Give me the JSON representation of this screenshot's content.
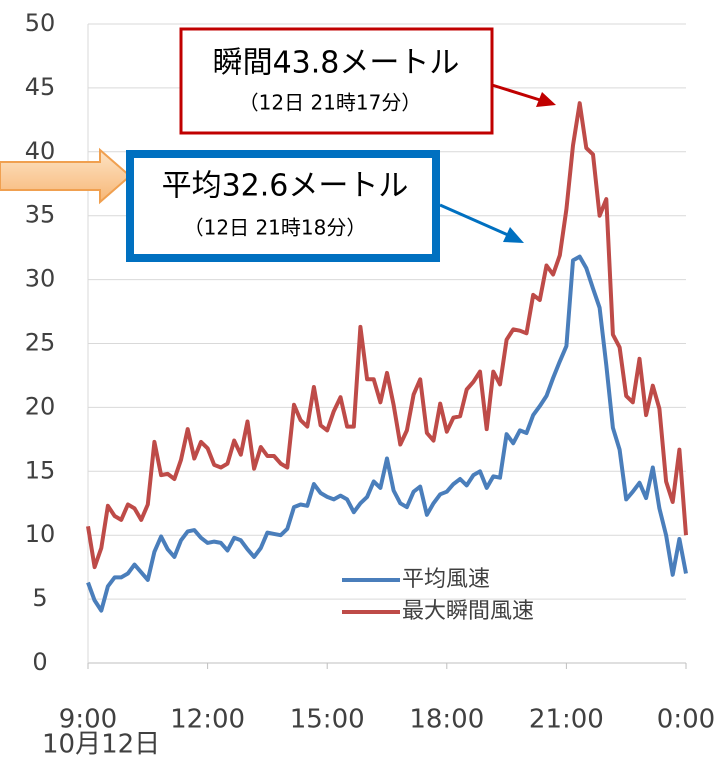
{
  "chart_data": {
    "type": "line",
    "categories": [
      "9:00",
      null,
      null,
      null,
      null,
      null,
      null,
      null,
      null,
      null,
      null,
      null,
      null,
      null,
      null,
      null,
      null,
      null,
      "12:00",
      null,
      null,
      null,
      null,
      null,
      null,
      null,
      null,
      null,
      null,
      null,
      null,
      null,
      null,
      null,
      null,
      null,
      "15:00",
      null,
      null,
      null,
      null,
      null,
      null,
      null,
      null,
      null,
      null,
      null,
      null,
      null,
      null,
      null,
      null,
      null,
      "18:00",
      null,
      null,
      null,
      null,
      null,
      null,
      null,
      null,
      null,
      null,
      null,
      null,
      null,
      null,
      null,
      null,
      null,
      "21:00",
      null,
      null,
      null,
      null,
      null,
      null,
      null,
      null,
      null,
      null,
      null,
      null,
      null,
      null,
      null,
      null,
      null,
      "0:00"
    ],
    "x_label": "10月12日",
    "ylim": [
      0,
      50
    ],
    "yticks": [
      0,
      5,
      10,
      15,
      20,
      25,
      30,
      35,
      40,
      45,
      50
    ],
    "grid": true,
    "series": [
      {
        "name": "平均風速",
        "color": "#4a7ebb",
        "values": [
          6.3,
          4.9,
          4.1,
          6,
          6.7,
          6.7,
          7,
          7.7,
          7.1,
          6.5,
          8.7,
          9.9,
          8.9,
          8.3,
          9.6,
          10.3,
          10.4,
          9.8,
          9.4,
          9.5,
          9.4,
          8.8,
          9.8,
          9.6,
          8.9,
          8.3,
          9,
          10.2,
          10.1,
          10,
          10.5,
          12.2,
          12.4,
          12.3,
          14,
          13.3,
          13,
          12.8,
          13.1,
          12.8,
          11.8,
          12.5,
          13,
          14.2,
          13.7,
          16,
          13.5,
          12.5,
          12.2,
          13.4,
          13.8,
          11.6,
          12.5,
          13.2,
          13.4,
          14,
          14.4,
          13.9,
          14.7,
          15,
          13.7,
          14.6,
          14.5,
          17.9,
          17.2,
          18.2,
          18,
          19.4,
          20.1,
          20.9,
          22.3,
          23.6,
          24.8,
          31.5,
          31.8,
          30.9,
          29.3,
          27.8,
          23.3,
          18.4,
          16.7,
          12.8,
          13.4,
          14.1,
          12.9,
          15.3,
          12.1,
          10,
          6.9,
          9.7,
          7
        ]
      },
      {
        "name": "最大瞬間風速",
        "color": "#be4b48",
        "values": [
          10.7,
          7.5,
          9,
          12.3,
          11.5,
          11.2,
          12.4,
          12.1,
          11.2,
          12.4,
          17.3,
          14.7,
          14.8,
          14.4,
          15.9,
          18.3,
          16,
          17.3,
          16.8,
          15.5,
          15.3,
          15.6,
          17.4,
          16.3,
          18.9,
          15.2,
          16.9,
          16.2,
          16.2,
          15.6,
          15.3,
          20.2,
          19,
          18.5,
          21.6,
          18.6,
          18.2,
          19.7,
          20.8,
          18.5,
          18.5,
          26.3,
          22.2,
          22.2,
          20.4,
          22.7,
          20.2,
          17.1,
          18.2,
          21,
          22.2,
          18,
          17.4,
          20.3,
          18.1,
          19.2,
          19.3,
          21.4,
          22,
          22.8,
          18.3,
          22.8,
          21.8,
          25.3,
          26.1,
          26,
          25.8,
          28.8,
          28.4,
          31.1,
          30.4,
          31.9,
          35.5,
          40.5,
          43.8,
          40.3,
          39.8,
          35,
          36.3,
          25.7,
          24.7,
          20.9,
          20.4,
          23.8,
          19.4,
          21.7,
          19.9,
          14.2,
          12.6,
          16.7,
          10
        ]
      }
    ],
    "annotations": [
      {
        "text": "瞬間43.8メートル",
        "time": "（12日 21時17分）"
      },
      {
        "text": "平均32.6メートル",
        "time": "（12日 21時18分）"
      }
    ]
  }
}
